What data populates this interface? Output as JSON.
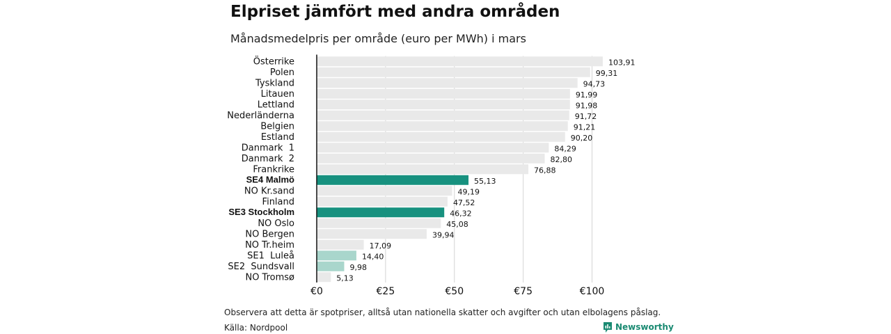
{
  "title": "Elpriset jämfört med andra områden",
  "subtitle": "Månadsmedelpris per område (euro per MWh) i mars",
  "note": "Observera att detta är spotpriser, alltså utan nationella skatter och avgifter och utan elbolagens påslag.",
  "source": "Källa: Nordpool",
  "brand": "Newsworthy",
  "colors": {
    "default_bar": "#e9e9e9",
    "highlight_bar": "#17917f",
    "light_highlight_bar": "#a9d6cc",
    "brand": "#1a8a72"
  },
  "chart_data": {
    "type": "bar",
    "orientation": "horizontal",
    "title": "Elpriset jämfört med andra områden",
    "subtitle": "Månadsmedelpris per område (euro per MWh) i mars",
    "xlim": [
      0,
      100
    ],
    "x_ticks": [
      0,
      25,
      50,
      75,
      100
    ],
    "x_tick_labels": [
      "€0",
      "€25",
      "€50",
      "€75",
      "€100"
    ],
    "grid": "vertical",
    "categories": [
      "Österrike",
      "Polen",
      "Tyskland",
      "Litauen",
      "Lettland",
      "Nederländerna",
      "Belgien",
      "Estland",
      "Danmark  1",
      "Danmark  2",
      "Frankrike",
      "SE4 Malmö",
      "NO Kr.sand",
      "Finland",
      "SE3 Stockholm",
      "NO Oslo",
      "NO Bergen",
      "NO Tr.heim",
      "SE1  Luleå",
      "SE2  Sundsvall",
      "NO Tromsø"
    ],
    "values": [
      103.91,
      99.31,
      94.73,
      91.99,
      91.98,
      91.72,
      91.21,
      90.2,
      84.29,
      82.8,
      76.88,
      55.13,
      49.19,
      47.52,
      46.32,
      45.08,
      39.94,
      17.09,
      14.4,
      9.98,
      5.13
    ],
    "value_labels": [
      "103,91",
      "99,31",
      "94,73",
      "91,99",
      "91,98",
      "91,72",
      "91,21",
      "90,20",
      "84,29",
      "82,80",
      "76,88",
      "55,13",
      "49,19",
      "47,52",
      "46,32",
      "45,08",
      "39,94",
      "17,09",
      "14,40",
      "9,98",
      "5,13"
    ],
    "highlight": [
      "default",
      "default",
      "default",
      "default",
      "default",
      "default",
      "default",
      "default",
      "default",
      "default",
      "default",
      "strong",
      "default",
      "default",
      "strong",
      "default",
      "default",
      "default",
      "light",
      "light",
      "default"
    ]
  }
}
